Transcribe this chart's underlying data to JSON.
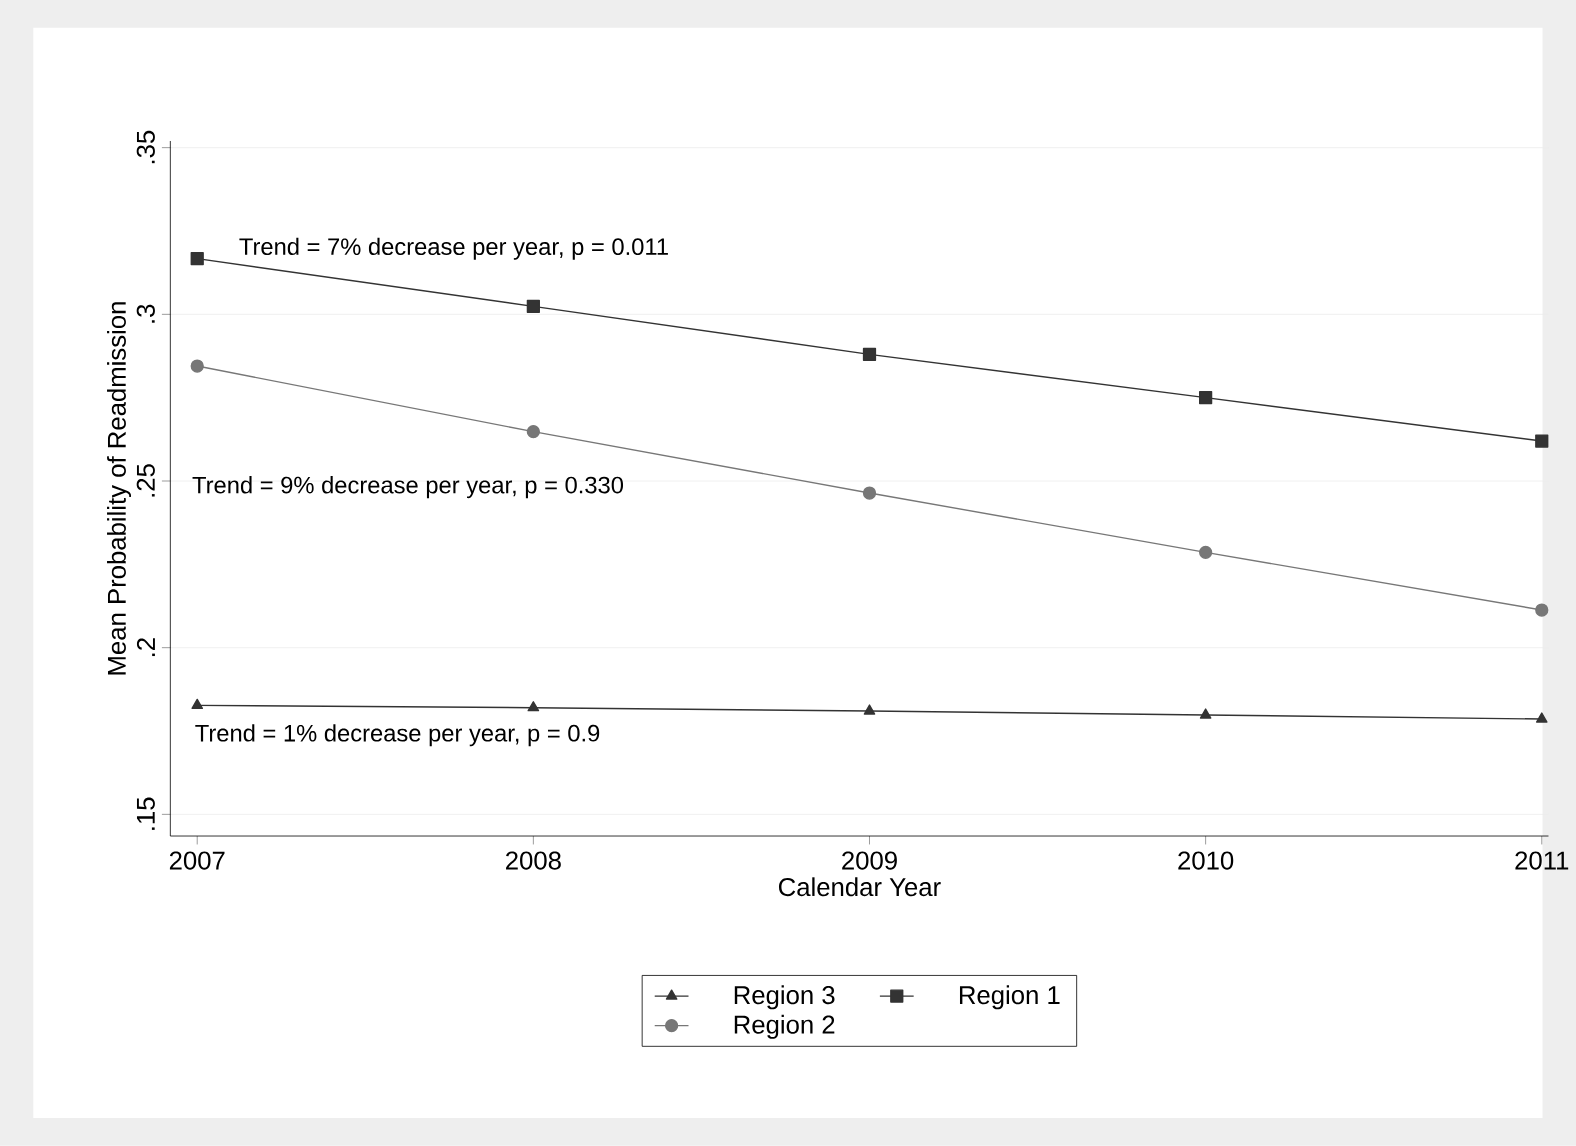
{
  "chart_data": {
    "type": "line",
    "xlabel": "Calendar Year",
    "ylabel": "Mean Probability of Readmission",
    "x": [
      2007,
      2008,
      2009,
      2010,
      2011
    ],
    "series": [
      {
        "name": "Region 3",
        "color": "#333333",
        "marker": "triangle",
        "values": [
          0.1827,
          0.182,
          0.181,
          0.1798,
          0.1786
        ]
      },
      {
        "name": "Region 1",
        "color": "#333333",
        "marker": "square",
        "values": [
          0.3167,
          0.3024,
          0.288,
          0.275,
          0.262
        ]
      },
      {
        "name": "Region 2",
        "color": "#777777",
        "marker": "circle",
        "values": [
          0.2845,
          0.2648,
          0.2464,
          0.2286,
          0.2113
        ]
      }
    ],
    "xlim": [
      2006.92,
      2011.02
    ],
    "ylim": [
      0.1435,
      0.352
    ],
    "xticks": [
      2007,
      2008,
      2009,
      2010,
      2011
    ],
    "yticks": [
      {
        "value": 0.15,
        "label": ".15"
      },
      {
        "value": 0.2,
        "label": ".2"
      },
      {
        "value": 0.25,
        "label": ".25"
      },
      {
        "value": 0.3,
        "label": ".3"
      },
      {
        "value": 0.35,
        "label": ".35"
      }
    ],
    "grid": "y",
    "legend": "bottom",
    "line_style": "solid",
    "annotations": [
      "Trend = 7% decrease per year, p = 0.011",
      "Trend = 9% decrease per year, p = 0.330",
      "Trend = 1% decrease per year, p = 0.9"
    ]
  }
}
